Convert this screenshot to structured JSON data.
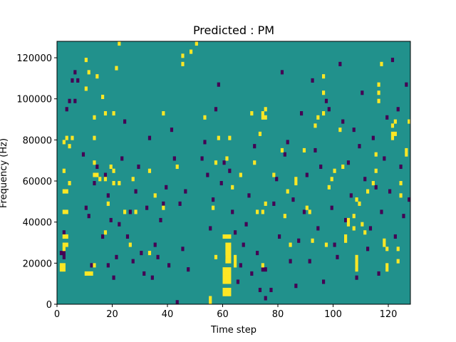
{
  "chart_data": {
    "type": "heatmap",
    "title": "Predicted : PM",
    "xlabel": "Time step",
    "ylabel": "Frequency (Hz)",
    "xlim": [
      0,
      128
    ],
    "ylim": [
      0,
      128000
    ],
    "x_ticks": [
      0,
      20,
      40,
      60,
      80,
      100,
      120
    ],
    "x_tick_labels": [
      "0",
      "20",
      "40",
      "60",
      "80",
      "100",
      "120"
    ],
    "y_ticks": [
      0,
      20000,
      40000,
      60000,
      80000,
      100000,
      120000
    ],
    "y_tick_labels": [
      "0",
      "20000",
      "40000",
      "60000",
      "80000",
      "100000",
      "120000"
    ],
    "grid": false,
    "legend": "none",
    "colors": {
      "background": "#21918c",
      "low": "#440154",
      "high": "#fde725",
      "axes": "#000000"
    },
    "bins": {
      "time_steps": 128,
      "freq_bins": 64,
      "freq_bin_hz": 2000
    },
    "value_levels": {
      "low": -1,
      "background": 0,
      "high": 1
    },
    "high_cells": [
      [
        1,
        8
      ],
      [
        1,
        9
      ],
      [
        2,
        8
      ],
      [
        2,
        9
      ],
      [
        2,
        13
      ],
      [
        2,
        14
      ],
      [
        3,
        14
      ],
      [
        2,
        16
      ],
      [
        3,
        16
      ],
      [
        2,
        22
      ],
      [
        3,
        22
      ],
      [
        2,
        27
      ],
      [
        3,
        27
      ],
      [
        2,
        32
      ],
      [
        2,
        39
      ],
      [
        3,
        40
      ],
      [
        4,
        29
      ],
      [
        4,
        38
      ],
      [
        5,
        40
      ],
      [
        10,
        7
      ],
      [
        11,
        7
      ],
      [
        12,
        7
      ],
      [
        13,
        9
      ],
      [
        13,
        31
      ],
      [
        14,
        31
      ],
      [
        13,
        34
      ],
      [
        13,
        40
      ],
      [
        10,
        52
      ],
      [
        10,
        59
      ],
      [
        11,
        56
      ],
      [
        13,
        45
      ],
      [
        14,
        55
      ],
      [
        15,
        30
      ],
      [
        17,
        17
      ],
      [
        17,
        30
      ],
      [
        17,
        46
      ],
      [
        16,
        50
      ],
      [
        18,
        24
      ],
      [
        19,
        33
      ],
      [
        20,
        29
      ],
      [
        20,
        32
      ],
      [
        20,
        46
      ],
      [
        21,
        57
      ],
      [
        22,
        29
      ],
      [
        22,
        63
      ],
      [
        24,
        22
      ],
      [
        26,
        14
      ],
      [
        27,
        30
      ],
      [
        28,
        22
      ],
      [
        33,
        12
      ],
      [
        33,
        32
      ],
      [
        35,
        26
      ],
      [
        38,
        23
      ],
      [
        38,
        46
      ],
      [
        43,
        33
      ],
      [
        45,
        58
      ],
      [
        45,
        60
      ],
      [
        48,
        61
      ],
      [
        50,
        63
      ],
      [
        53,
        45
      ],
      [
        55,
        0
      ],
      [
        55,
        1
      ],
      [
        56,
        23
      ],
      [
        57,
        11
      ],
      [
        57,
        34
      ],
      [
        60,
        2
      ],
      [
        60,
        3
      ],
      [
        61,
        2
      ],
      [
        61,
        3
      ],
      [
        62,
        2
      ],
      [
        62,
        3
      ],
      [
        60,
        5
      ],
      [
        61,
        5
      ],
      [
        62,
        5
      ],
      [
        60,
        6
      ],
      [
        61,
        6
      ],
      [
        62,
        6
      ],
      [
        60,
        7
      ],
      [
        61,
        7
      ],
      [
        62,
        7
      ],
      [
        60,
        8
      ],
      [
        61,
        8
      ],
      [
        62,
        8
      ],
      [
        61,
        10
      ],
      [
        62,
        10
      ],
      [
        61,
        11
      ],
      [
        62,
        11
      ],
      [
        61,
        12
      ],
      [
        62,
        12
      ],
      [
        61,
        13
      ],
      [
        62,
        13
      ],
      [
        61,
        14
      ],
      [
        62,
        14
      ],
      [
        60,
        16
      ],
      [
        61,
        16
      ],
      [
        62,
        16
      ],
      [
        58,
        40
      ],
      [
        61,
        35
      ],
      [
        62,
        40
      ],
      [
        63,
        28
      ],
      [
        64,
        9
      ],
      [
        64,
        10
      ],
      [
        64,
        11
      ],
      [
        66,
        31
      ],
      [
        70,
        46
      ],
      [
        71,
        34
      ],
      [
        72,
        22
      ],
      [
        74,
        22
      ],
      [
        74,
        9
      ],
      [
        75,
        24
      ],
      [
        73,
        41
      ],
      [
        74,
        45
      ],
      [
        75,
        45
      ],
      [
        74,
        46
      ],
      [
        75,
        47
      ],
      [
        78,
        31
      ],
      [
        81,
        37
      ],
      [
        82,
        21
      ],
      [
        83,
        27
      ],
      [
        84,
        14
      ],
      [
        86,
        29
      ],
      [
        86,
        30
      ],
      [
        89,
        37
      ],
      [
        90,
        23
      ],
      [
        91,
        22
      ],
      [
        92,
        15
      ],
      [
        93,
        43
      ],
      [
        94,
        45
      ],
      [
        96,
        46
      ],
      [
        96,
        51
      ],
      [
        96,
        55
      ],
      [
        97,
        14
      ],
      [
        98,
        28
      ],
      [
        99,
        30
      ],
      [
        100,
        32
      ],
      [
        102,
        42
      ],
      [
        103,
        33
      ],
      [
        104,
        15
      ],
      [
        104,
        16
      ],
      [
        105,
        19
      ],
      [
        105,
        20
      ],
      [
        107,
        18
      ],
      [
        107,
        21
      ],
      [
        108,
        8
      ],
      [
        108,
        9
      ],
      [
        108,
        10
      ],
      [
        108,
        11
      ],
      [
        108,
        25
      ],
      [
        109,
        24
      ],
      [
        110,
        19
      ],
      [
        111,
        17
      ],
      [
        112,
        27
      ],
      [
        114,
        29
      ],
      [
        115,
        32
      ],
      [
        115,
        36
      ],
      [
        116,
        49
      ],
      [
        116,
        51
      ],
      [
        116,
        53
      ],
      [
        117,
        58
      ],
      [
        118,
        14
      ],
      [
        118,
        15
      ],
      [
        119,
        8
      ],
      [
        119,
        9
      ],
      [
        119,
        13
      ],
      [
        121,
        40
      ],
      [
        121,
        41
      ],
      [
        121,
        43
      ],
      [
        122,
        41
      ],
      [
        122,
        44
      ],
      [
        123,
        10
      ],
      [
        123,
        13
      ],
      [
        124,
        26
      ],
      [
        124,
        29
      ],
      [
        126,
        36
      ],
      [
        126,
        37
      ],
      [
        127,
        44
      ]
    ],
    "low_cells": [
      [
        1,
        12
      ],
      [
        2,
        11
      ],
      [
        2,
        12
      ],
      [
        2,
        17
      ],
      [
        3,
        47
      ],
      [
        4,
        49
      ],
      [
        5,
        54
      ],
      [
        6,
        49
      ],
      [
        6,
        56
      ],
      [
        7,
        54
      ],
      [
        9,
        36
      ],
      [
        10,
        23
      ],
      [
        11,
        21
      ],
      [
        12,
        9
      ],
      [
        13,
        29
      ],
      [
        14,
        33
      ],
      [
        16,
        16
      ],
      [
        17,
        31
      ],
      [
        18,
        9
      ],
      [
        18,
        26
      ],
      [
        19,
        20
      ],
      [
        20,
        6
      ],
      [
        21,
        11
      ],
      [
        22,
        19
      ],
      [
        23,
        35
      ],
      [
        24,
        44
      ],
      [
        25,
        16
      ],
      [
        26,
        22
      ],
      [
        27,
        10
      ],
      [
        28,
        27
      ],
      [
        29,
        33
      ],
      [
        30,
        12
      ],
      [
        31,
        7
      ],
      [
        32,
        23
      ],
      [
        33,
        40
      ],
      [
        34,
        6
      ],
      [
        35,
        14
      ],
      [
        36,
        11
      ],
      [
        37,
        20
      ],
      [
        38,
        24
      ],
      [
        39,
        28
      ],
      [
        40,
        9
      ],
      [
        41,
        42
      ],
      [
        42,
        35
      ],
      [
        43,
        0
      ],
      [
        44,
        24
      ],
      [
        45,
        13
      ],
      [
        46,
        27
      ],
      [
        47,
        8
      ],
      [
        52,
        35
      ],
      [
        53,
        39
      ],
      [
        54,
        31
      ],
      [
        55,
        18
      ],
      [
        56,
        25
      ],
      [
        57,
        47
      ],
      [
        58,
        53
      ],
      [
        59,
        29
      ],
      [
        60,
        34
      ],
      [
        61,
        11
      ],
      [
        62,
        32
      ],
      [
        63,
        22
      ],
      [
        64,
        17
      ],
      [
        65,
        5
      ],
      [
        66,
        9
      ],
      [
        67,
        14
      ],
      [
        68,
        19
      ],
      [
        69,
        26
      ],
      [
        70,
        7
      ],
      [
        71,
        38
      ],
      [
        72,
        12
      ],
      [
        73,
        3
      ],
      [
        74,
        8
      ],
      [
        75,
        1
      ],
      [
        75,
        8
      ],
      [
        77,
        3
      ],
      [
        78,
        24
      ],
      [
        79,
        30
      ],
      [
        80,
        16
      ],
      [
        81,
        56
      ],
      [
        82,
        36
      ],
      [
        83,
        39
      ],
      [
        84,
        10
      ],
      [
        85,
        25
      ],
      [
        86,
        4
      ],
      [
        87,
        15
      ],
      [
        88,
        46
      ],
      [
        89,
        22
      ],
      [
        90,
        31
      ],
      [
        91,
        10
      ],
      [
        92,
        54
      ],
      [
        93,
        37
      ],
      [
        94,
        18
      ],
      [
        95,
        33
      ],
      [
        96,
        5
      ],
      [
        97,
        49
      ],
      [
        98,
        47
      ],
      [
        99,
        23
      ],
      [
        100,
        14
      ],
      [
        101,
        11
      ],
      [
        102,
        58
      ],
      [
        103,
        44
      ],
      [
        104,
        20
      ],
      [
        105,
        34
      ],
      [
        106,
        26
      ],
      [
        107,
        42
      ],
      [
        108,
        6
      ],
      [
        109,
        38
      ],
      [
        110,
        51
      ],
      [
        111,
        30
      ],
      [
        112,
        13
      ],
      [
        113,
        18
      ],
      [
        114,
        40
      ],
      [
        115,
        28
      ],
      [
        116,
        7
      ],
      [
        117,
        22
      ],
      [
        118,
        35
      ],
      [
        119,
        45
      ],
      [
        120,
        27
      ],
      [
        121,
        59
      ],
      [
        122,
        16
      ],
      [
        123,
        47
      ],
      [
        124,
        33
      ],
      [
        125,
        21
      ],
      [
        126,
        53
      ],
      [
        127,
        25
      ]
    ]
  }
}
